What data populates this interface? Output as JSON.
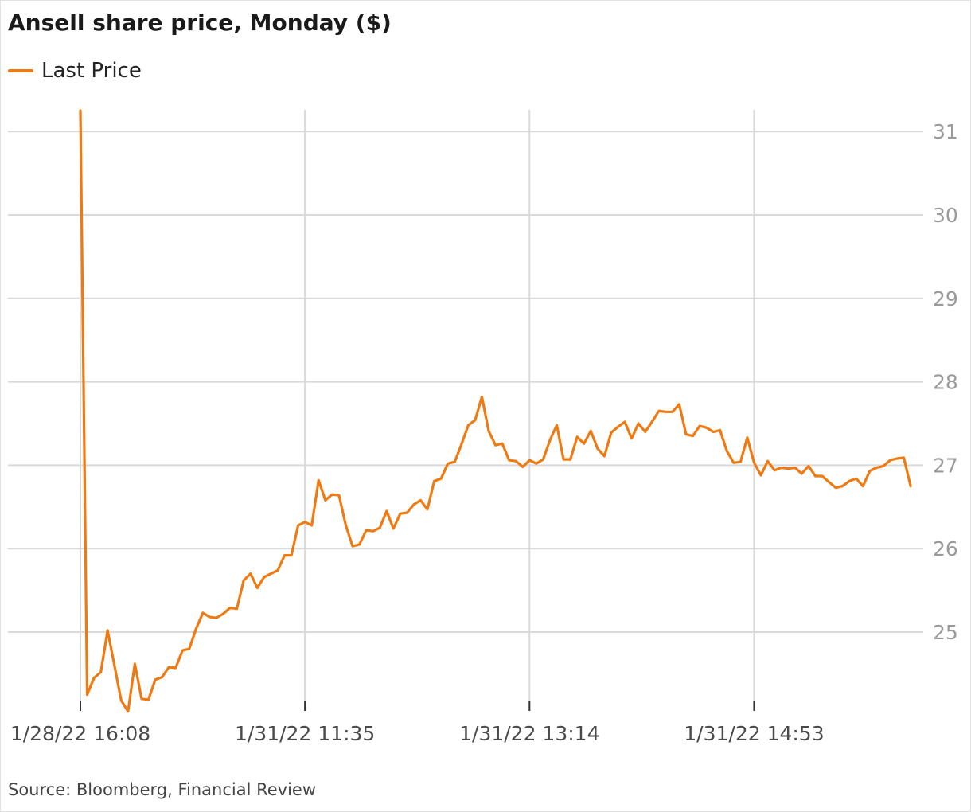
{
  "chart_data": {
    "type": "line",
    "title": "Ansell share price, Monday ($)",
    "source": "Source: Bloomberg, Financial Review",
    "legend_position": "top-left",
    "grid": true,
    "y_axis_side": "right",
    "ylim": [
      24.1,
      31.3
    ],
    "y_ticks": [
      25,
      26,
      27,
      28,
      29,
      30,
      31
    ],
    "x_ticks": [
      {
        "label": "1/28/22 16:08",
        "index": 0
      },
      {
        "label": "1/31/22 11:35",
        "index": 33
      },
      {
        "label": "1/31/22 13:14",
        "index": 66
      },
      {
        "label": "1/31/22 14:53",
        "index": 99
      }
    ],
    "series": [
      {
        "name": "Last Price",
        "color": "#ef7a12",
        "values": [
          31.25,
          24.25,
          24.45,
          24.52,
          25.02,
          24.6,
          24.18,
          24.05,
          24.62,
          24.2,
          24.19,
          24.43,
          24.46,
          24.58,
          24.57,
          24.78,
          24.8,
          25.04,
          25.23,
          25.18,
          25.17,
          25.22,
          25.29,
          25.28,
          25.62,
          25.7,
          25.53,
          25.66,
          25.7,
          25.74,
          25.92,
          25.92,
          26.28,
          26.32,
          26.28,
          26.82,
          26.58,
          26.65,
          26.64,
          26.28,
          26.03,
          26.05,
          26.22,
          26.21,
          26.25,
          26.45,
          26.24,
          26.42,
          26.43,
          26.53,
          26.58,
          26.47,
          26.81,
          26.84,
          27.02,
          27.04,
          27.25,
          27.48,
          27.54,
          27.82,
          27.41,
          27.24,
          27.26,
          27.06,
          27.05,
          26.98,
          27.06,
          27.02,
          27.07,
          27.3,
          27.48,
          27.07,
          27.07,
          27.34,
          27.26,
          27.41,
          27.2,
          27.11,
          27.39,
          27.46,
          27.52,
          27.32,
          27.5,
          27.4,
          27.52,
          27.65,
          27.64,
          27.64,
          27.73,
          27.37,
          27.35,
          27.47,
          27.45,
          27.4,
          27.42,
          27.17,
          27.03,
          27.04,
          27.33,
          27.03,
          26.88,
          27.05,
          26.94,
          26.97,
          26.96,
          26.97,
          26.9,
          26.99,
          26.87,
          26.87,
          26.8,
          26.73,
          26.75,
          26.81,
          26.84,
          26.75,
          26.93,
          26.97,
          26.99,
          27.06,
          27.08,
          27.09,
          26.75
        ]
      }
    ]
  }
}
